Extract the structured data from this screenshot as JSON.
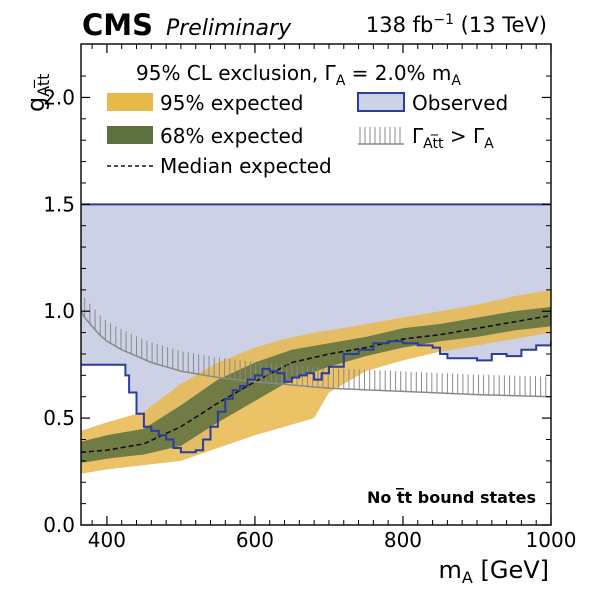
{
  "header": {
    "experiment": "CMS",
    "status": "Preliminary",
    "lumi_prefix": "138 fb",
    "lumi_exp": "−1",
    "lumi_suffix": " (13 TeV)"
  },
  "legend": {
    "title_prefix": "95% CL exclusion, Γ",
    "title_sub": "A",
    "title_suffix": " =  2.0% m",
    "title_sub2": "A",
    "band95": "95% expected",
    "band68": "68% expected",
    "median": "Median expected",
    "observed": "Observed",
    "width_prefix": "Γ",
    "width_sub": "At̅t",
    "width_mid": " > Γ",
    "width_sub2": "A"
  },
  "annotation": "No t̅t bound states",
  "colors": {
    "band95": "#e8b84b",
    "band68": "#5c7040",
    "observed_fill": "#cdd1e6",
    "observed_line": "#2a3c9c",
    "median": "#111111",
    "width_line": "#8a8a8a"
  },
  "chart_data": {
    "type": "area",
    "xlabel_main": "m",
    "xlabel_sub": "A",
    "xlabel_unit": " [GeV]",
    "ylabel_main": "g",
    "ylabel_sub": "At̅t",
    "xlim": [
      365,
      1000
    ],
    "ylim": [
      0,
      2.25
    ],
    "xticks": [
      400,
      600,
      800,
      1000
    ],
    "yticks": [
      0.0,
      0.5,
      1.0,
      1.5,
      2.0
    ],
    "ytick_labels": [
      "0.0",
      "0.5",
      "1.0",
      "1.5",
      "2.0"
    ],
    "band95": {
      "x": [
        365,
        400,
        450,
        500,
        550,
        600,
        640,
        680,
        700,
        750,
        800,
        850,
        900,
        950,
        1000
      ],
      "lo": [
        0.24,
        0.26,
        0.28,
        0.3,
        0.36,
        0.42,
        0.46,
        0.5,
        0.62,
        0.72,
        0.77,
        0.81,
        0.84,
        0.87,
        0.9
      ],
      "hi": [
        0.44,
        0.48,
        0.53,
        0.66,
        0.76,
        0.83,
        0.87,
        0.9,
        0.91,
        0.94,
        0.97,
        1.0,
        1.03,
        1.07,
        1.1
      ]
    },
    "band68": {
      "x": [
        365,
        400,
        450,
        500,
        550,
        600,
        650,
        700,
        750,
        800,
        850,
        900,
        950,
        1000
      ],
      "lo": [
        0.29,
        0.31,
        0.33,
        0.37,
        0.48,
        0.58,
        0.68,
        0.74,
        0.79,
        0.83,
        0.86,
        0.88,
        0.91,
        0.93
      ],
      "hi": [
        0.39,
        0.42,
        0.45,
        0.56,
        0.68,
        0.76,
        0.82,
        0.85,
        0.88,
        0.92,
        0.94,
        0.97,
        1.0,
        1.02
      ]
    },
    "median": {
      "x": [
        365,
        400,
        450,
        500,
        550,
        600,
        650,
        700,
        750,
        800,
        850,
        900,
        950,
        1000
      ],
      "y": [
        0.34,
        0.35,
        0.38,
        0.46,
        0.57,
        0.67,
        0.76,
        0.8,
        0.83,
        0.87,
        0.89,
        0.92,
        0.95,
        0.98
      ]
    },
    "observed": {
      "x": [
        365,
        420,
        425,
        430,
        440,
        450,
        460,
        470,
        480,
        490,
        500,
        510,
        520,
        530,
        540,
        550,
        560,
        570,
        580,
        590,
        600,
        610,
        620,
        630,
        640,
        650,
        660,
        670,
        680,
        690,
        700,
        720,
        740,
        760,
        780,
        800,
        820,
        840,
        850,
        860,
        880,
        900,
        920,
        940,
        960,
        980,
        1000
      ],
      "y": [
        0.75,
        0.75,
        0.7,
        0.62,
        0.52,
        0.46,
        0.44,
        0.42,
        0.4,
        0.36,
        0.34,
        0.34,
        0.35,
        0.4,
        0.46,
        0.53,
        0.59,
        0.63,
        0.65,
        0.68,
        0.7,
        0.73,
        0.72,
        0.71,
        0.67,
        0.69,
        0.7,
        0.71,
        0.68,
        0.71,
        0.74,
        0.8,
        0.82,
        0.85,
        0.86,
        0.85,
        0.84,
        0.83,
        0.8,
        0.78,
        0.78,
        0.77,
        0.8,
        0.79,
        0.82,
        0.84,
        0.86
      ],
      "excluded_above": 1.5
    },
    "width_boundary": {
      "x": [
        365,
        370,
        380,
        390,
        400,
        420,
        440,
        460,
        480,
        500,
        550,
        600,
        650,
        700,
        800,
        900,
        1000
      ],
      "y": [
        1.0,
        0.97,
        0.93,
        0.89,
        0.86,
        0.82,
        0.79,
        0.76,
        0.74,
        0.72,
        0.69,
        0.67,
        0.655,
        0.64,
        0.625,
        0.61,
        0.6
      ]
    }
  }
}
